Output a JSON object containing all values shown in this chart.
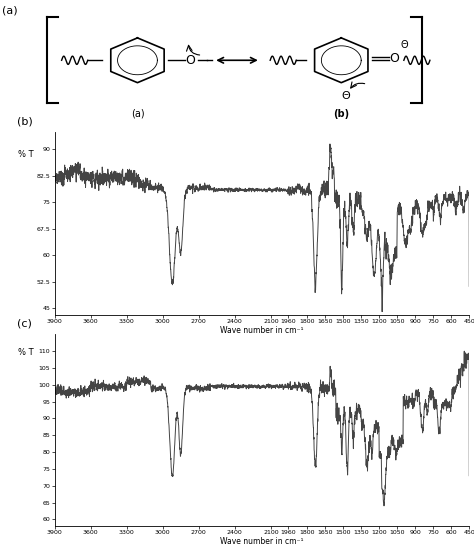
{
  "fig_width": 4.74,
  "fig_height": 5.48,
  "dpi": 100,
  "background_color": "#ffffff",
  "panel_a_label": "(a)",
  "panel_b_label": "(b)",
  "panel_c_label": "(c)",
  "ir_b_ylabel": "% T",
  "ir_b_xlabel": "Wave number in cm⁻¹",
  "ir_b_ylim": [
    43,
    95
  ],
  "ir_b_xticks": [
    3900,
    3600,
    3300,
    3000,
    2700,
    2400,
    2100,
    1960,
    1800,
    1650,
    1500,
    1350,
    1200,
    1050,
    900,
    750,
    600,
    450
  ],
  "ir_b_yticks": [
    45,
    52.5,
    60,
    67.5,
    75,
    82.5,
    90
  ],
  "ir_c_ylabel": "% T",
  "ir_c_xlabel": "Wave number in cm⁻¹",
  "ir_c_ylim": [
    58,
    115
  ],
  "ir_c_xticks": [
    3900,
    3600,
    3300,
    3000,
    2700,
    2400,
    2100,
    1960,
    1800,
    1650,
    1500,
    1350,
    1200,
    1050,
    900,
    750,
    600,
    450
  ],
  "ir_c_yticks": [
    60,
    65,
    70,
    75,
    80,
    85,
    90,
    95,
    100,
    105,
    110
  ],
  "line_color": "#444444",
  "line_width": 0.7
}
